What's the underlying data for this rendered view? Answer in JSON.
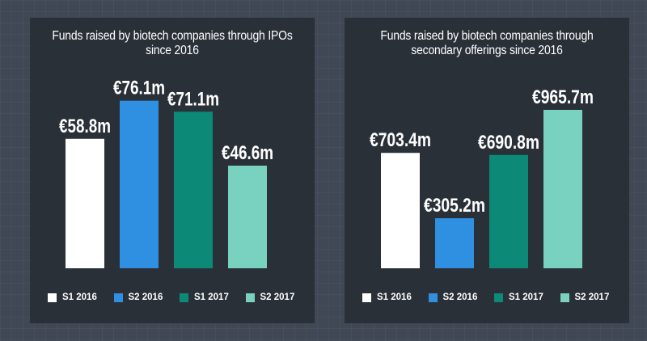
{
  "colors": {
    "S1 2016": "#ffffff",
    "S2 2016": "#2f8fe0",
    "S1 2017": "#0d8a77",
    "S2 2017": "#79d2c0"
  },
  "chart_data": [
    {
      "type": "bar",
      "title": "Funds raised by biotech companies through IPOs  since 2016",
      "categories": [
        "S1 2016",
        "S2 2016",
        "S1 2017",
        "S2 2017"
      ],
      "values": [
        58.8,
        76.1,
        71.1,
        46.6
      ],
      "labels": [
        "€58.8m",
        "€76.1m",
        "€71.1m",
        "€46.6m"
      ],
      "ylim": [
        0,
        80
      ],
      "unit": "€m",
      "grid": false,
      "legend": "bottom"
    },
    {
      "type": "bar",
      "title": "Funds raised by biotech companies through secondary offerings since 2016",
      "categories": [
        "S1 2016",
        "S2 2016",
        "S1 2017",
        "S2 2017"
      ],
      "values": [
        703.4,
        305.2,
        690.8,
        965.7
      ],
      "labels": [
        "€703.4m",
        "€305.2m",
        "€690.8m",
        "€965.7m"
      ],
      "ylim": [
        0,
        1000
      ],
      "unit": "€m",
      "grid": false,
      "legend": "bottom"
    }
  ]
}
